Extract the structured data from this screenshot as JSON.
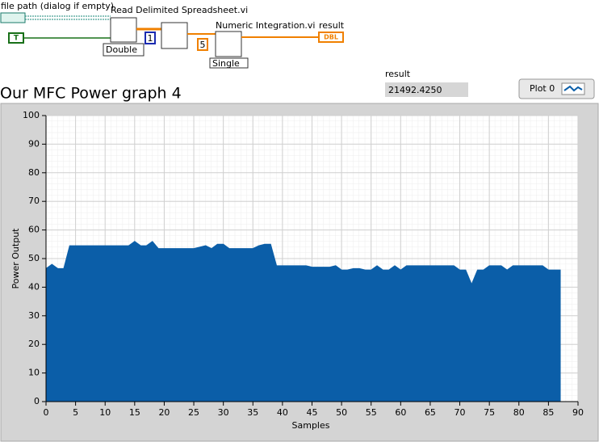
{
  "diagram": {
    "file_path_label": "file path (dialog if empty)",
    "read_vi": "Read Delimited Spreadsheet.vi",
    "double": "Double",
    "index": 1,
    "integration_vi": "Numeric Integration.vi",
    "points": 5,
    "single": "Single",
    "result_label": "result",
    "dbl": "DBL",
    "t": "T"
  },
  "result": {
    "label": "result",
    "value": "21492.4250"
  },
  "chart_data": {
    "type": "area",
    "title": "Our MFC Power graph 4",
    "x_label": "Samples",
    "y_label": "Power Output",
    "x": [
      0,
      1,
      2,
      3,
      4,
      5,
      6,
      7,
      8,
      9,
      10,
      11,
      12,
      13,
      14,
      15,
      16,
      17,
      18,
      19,
      20,
      21,
      22,
      23,
      24,
      25,
      26,
      27,
      28,
      29,
      30,
      31,
      32,
      33,
      34,
      35,
      36,
      37,
      38,
      39,
      40,
      41,
      42,
      43,
      44,
      45,
      46,
      47,
      48,
      49,
      50,
      51,
      52,
      53,
      54,
      55,
      56,
      57,
      58,
      59,
      60,
      61,
      62,
      63,
      64,
      65,
      66,
      67,
      68,
      69,
      70,
      71,
      72,
      73,
      74,
      75,
      76,
      77,
      78,
      79,
      80,
      81,
      82,
      83,
      84,
      85,
      86,
      87
    ],
    "series": [
      {
        "name": "Plot 0",
        "color": "#0b5ea8",
        "values": [
          46.5,
          48,
          46.5,
          46.5,
          54.5,
          54.5,
          54.5,
          54.5,
          54.5,
          54.5,
          54.5,
          54.5,
          54.5,
          54.5,
          54.5,
          56,
          54.5,
          54.5,
          56,
          53.5,
          53.5,
          53.5,
          53.5,
          53.5,
          53.5,
          53.5,
          54,
          54.5,
          53.5,
          55,
          55,
          53.5,
          53.5,
          53.5,
          53.5,
          53.5,
          54.5,
          55,
          55,
          47.5,
          47.5,
          47.5,
          47.5,
          47.5,
          47.5,
          47,
          47,
          47,
          47,
          47.5,
          46,
          46,
          46.5,
          46.5,
          46,
          46,
          47.5,
          46,
          46,
          47.5,
          46,
          47.5,
          47.5,
          47.5,
          47.5,
          47.5,
          47.5,
          47.5,
          47.5,
          47.5,
          46,
          46,
          41,
          46,
          46,
          47.5,
          47.5,
          47.5,
          46,
          47.5,
          47.5,
          47.5,
          47.5,
          47.5,
          47.5,
          46,
          46,
          46
        ]
      }
    ],
    "xlim": [
      0,
      90
    ],
    "ylim": [
      0,
      100
    ],
    "xticks": [
      0,
      5,
      10,
      15,
      20,
      25,
      30,
      35,
      40,
      45,
      50,
      55,
      60,
      65,
      70,
      75,
      80,
      85,
      90
    ],
    "yticks": [
      0,
      10,
      20,
      30,
      40,
      50,
      60,
      70,
      80,
      90,
      100
    ],
    "grid": true,
    "legend": "top-right"
  }
}
